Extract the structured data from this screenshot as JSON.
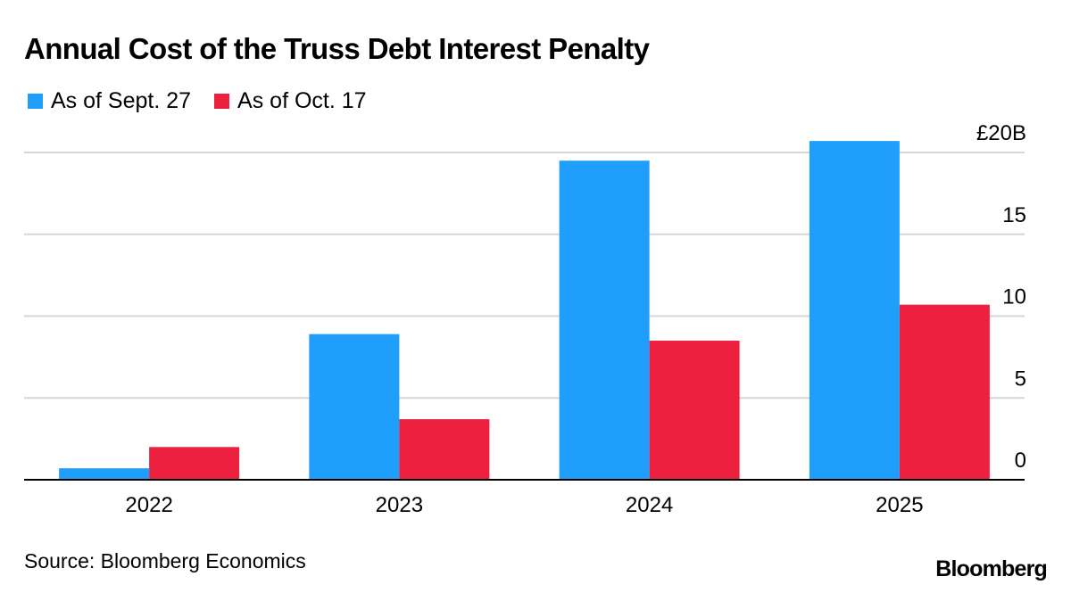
{
  "header": {
    "title": "Annual Cost of the Truss Debt Interest Penalty"
  },
  "footer": {
    "source": "Source: Bloomberg Economics",
    "brand": "Bloomberg"
  },
  "chart_data": {
    "type": "bar",
    "title": "Annual Cost of the Truss Debt Interest Penalty",
    "categories": [
      "2022",
      "2023",
      "2024",
      "2025"
    ],
    "series": [
      {
        "name": "As of Sept. 27",
        "color": "#1f9efc",
        "values": [
          0.7,
          8.9,
          19.5,
          20.7
        ]
      },
      {
        "name": "As of Oct. 17",
        "color": "#ec213f",
        "values": [
          2.0,
          3.7,
          8.5,
          10.7
        ]
      }
    ],
    "y_ticks": [
      {
        "value": 0,
        "label": "0"
      },
      {
        "value": 5,
        "label": "5"
      },
      {
        "value": 10,
        "label": "10"
      },
      {
        "value": 15,
        "label": "15"
      },
      {
        "value": 20,
        "label": "£20B"
      }
    ],
    "ylim": [
      0,
      20
    ],
    "y_axis_position": "right",
    "grid": true,
    "legend_position": "top-left"
  }
}
